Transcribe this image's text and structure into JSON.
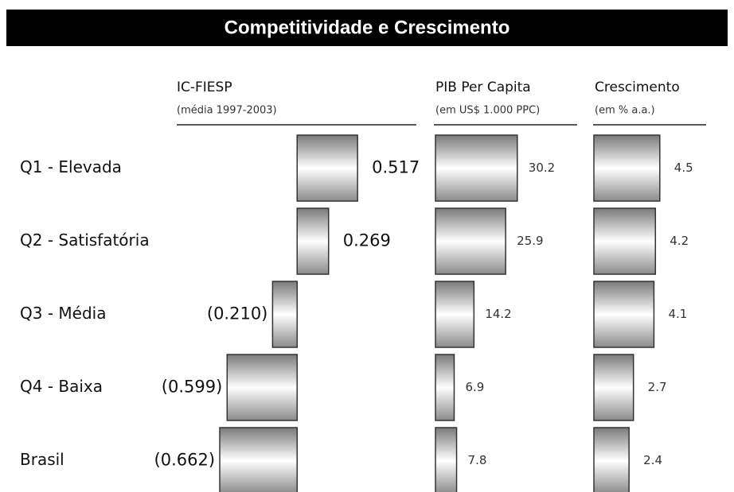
{
  "title": "Competitividade e Crescimento",
  "categories": [
    "Q1 - Elevada",
    "Q2 - Satisfatória",
    "Q3 - Média",
    "Q4 - Baixa",
    "Brasil"
  ],
  "chart_data": [
    {
      "type": "bar",
      "title": "IC-FIESP",
      "subtitle": "(média 1997-2003)",
      "values": [
        0.517,
        0.269,
        -0.21,
        -0.599,
        -0.662
      ],
      "value_labels": [
        "0.517",
        "0.269",
        "(0.210)",
        "(0.599)",
        "(0.662)"
      ],
      "xlim": [
        -1.03,
        1.02
      ]
    },
    {
      "type": "bar",
      "title": "PIB Per Capita",
      "subtitle": "(em US$ 1.000 PPC)",
      "values": [
        30.2,
        25.9,
        14.2,
        6.9,
        7.8
      ],
      "xlim": [
        0,
        52
      ]
    },
    {
      "type": "bar",
      "title": "Crescimento",
      "subtitle": "(em % a.a.)",
      "values": [
        4.5,
        4.2,
        4.1,
        2.7,
        2.4
      ],
      "xlim": [
        0,
        7.5
      ]
    }
  ]
}
